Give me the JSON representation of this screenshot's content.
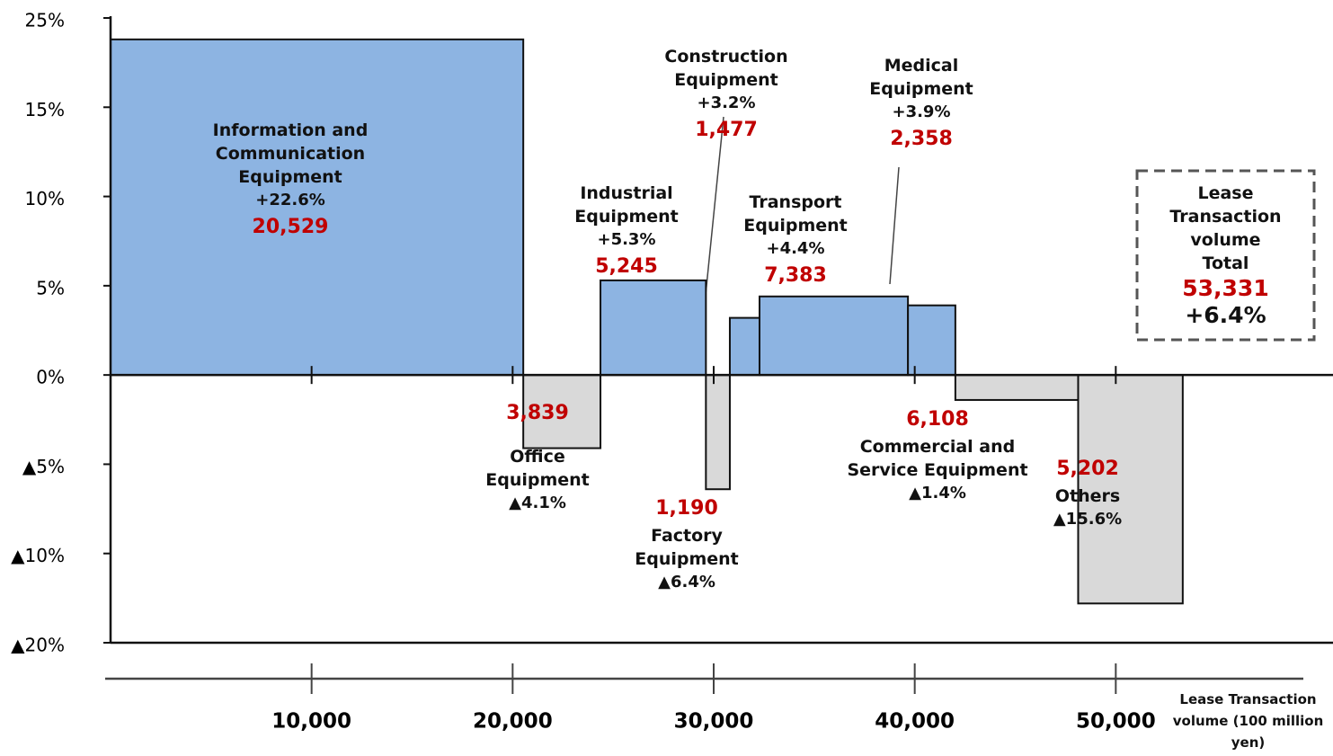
{
  "chart_data": {
    "type": "mekko",
    "x_label": "Lease Transaction volume (100 million yen)",
    "categories": [
      "Information and Communication Equipment",
      "Office Equipment",
      "Industrial Equipment",
      "Factory Equipment",
      "Construction Equipment",
      "Transport Equipment",
      "Medical Equipment",
      "Commercial and Service Equipment",
      "Others"
    ],
    "widths": [
      20529,
      3839,
      5245,
      1190,
      1477,
      7383,
      2358,
      6108,
      5202
    ],
    "width_labels": [
      "20,529",
      "3,839",
      "5,245",
      "1,190",
      "1,477",
      "7,383",
      "2,358",
      "6,108",
      "5,202"
    ],
    "values": [
      22.6,
      -4.1,
      5.3,
      -6.4,
      3.2,
      4.4,
      3.9,
      -1.4,
      -15.6
    ],
    "value_labels": [
      "+22.6%",
      "▲4.1%",
      "+5.3%",
      "▲6.4%",
      "+3.2%",
      "+4.4%",
      "+3.9%",
      "▲1.4%",
      "▲15.6%"
    ],
    "colors": [
      "#8db4e2",
      "#d9d9d9",
      "#8db4e2",
      "#d9d9d9",
      "#8db4e2",
      "#8db4e2",
      "#8db4e2",
      "#d9d9d9",
      "#d9d9d9"
    ],
    "ylim": [
      -20,
      25
    ],
    "yticks": [
      {
        "value": 25,
        "label": "25%"
      },
      {
        "value": 15,
        "label": "15%"
      },
      {
        "value": 10,
        "label": "10%"
      },
      {
        "value": 5,
        "label": "5%"
      },
      {
        "value": 0,
        "label": "0%"
      },
      {
        "value": -5,
        "label": "▲5%"
      },
      {
        "value": -10,
        "label": "▲10%"
      },
      {
        "value": -20,
        "label": "▲20%"
      }
    ],
    "xlim": [
      0,
      60000
    ],
    "xticks": [
      {
        "value": 10000,
        "label": "10,000"
      },
      {
        "value": 20000,
        "label": "20,000"
      },
      {
        "value": 30000,
        "label": "30,000"
      },
      {
        "value": 40000,
        "label": "40,000"
      },
      {
        "value": 50000,
        "label": "50,000"
      }
    ],
    "total": {
      "label": "Lease Transaction volume Total",
      "value": "53,331",
      "change": "+6.4%"
    }
  }
}
